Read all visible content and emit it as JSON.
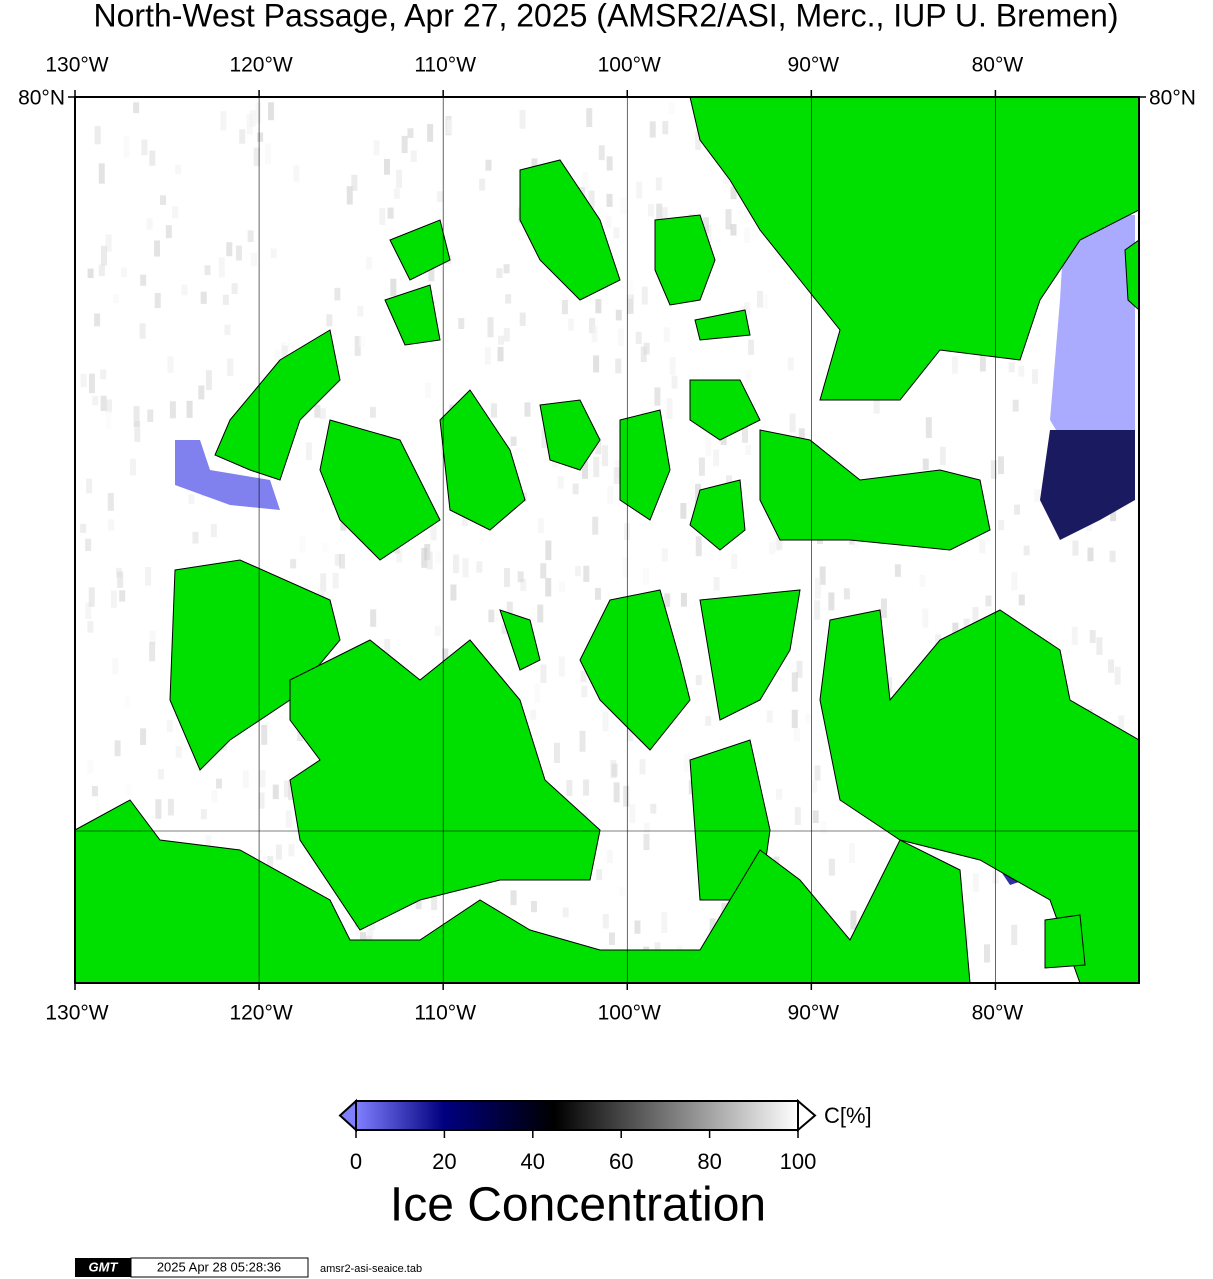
{
  "title": "North-West Passage, Apr 27, 2025 (AMSR2/ASI, Merc., IUP U. Bremen)",
  "map": {
    "lonlim": [
      -130,
      -72.2
    ],
    "lon_ticks": [
      {
        "value": -130,
        "label": "130°W"
      },
      {
        "value": -120,
        "label": "120°W"
      },
      {
        "value": -110,
        "label": "110°W"
      },
      {
        "value": -100,
        "label": "100°W"
      },
      {
        "value": -90,
        "label": "90°W"
      },
      {
        "value": -80,
        "label": "80°W"
      }
    ],
    "lat_ticks": [
      {
        "value": 80,
        "label": "80°N"
      }
    ],
    "land_color": "#00e000"
  },
  "colorbar": {
    "label": "C[%]",
    "title": "Ice Concentration",
    "limits": [
      0,
      100
    ],
    "ticks": [
      0,
      20,
      40,
      60,
      80,
      100
    ]
  },
  "footer": {
    "logo": "GMT",
    "timestamp": "2025 Apr 28 05:28:36",
    "source": "amsr2-asi-seaice.tab"
  }
}
